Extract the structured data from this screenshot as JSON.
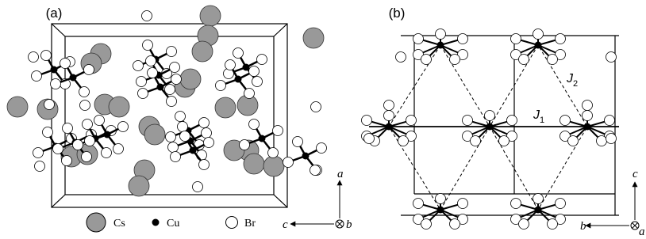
{
  "panels": [
    {
      "label": "(a)",
      "axes": {
        "up": "a",
        "left": "c",
        "out": "b"
      }
    },
    {
      "label": "(b)",
      "axes": {
        "up": "c",
        "left": "b",
        "out": "a"
      },
      "exchanges": [
        {
          "symbol": "J",
          "subscript": "2"
        },
        {
          "symbol": "J",
          "subscript": "1"
        }
      ]
    }
  ],
  "legend": [
    {
      "label": "Cs"
    },
    {
      "label": "Cu"
    },
    {
      "label": "Br"
    }
  ]
}
